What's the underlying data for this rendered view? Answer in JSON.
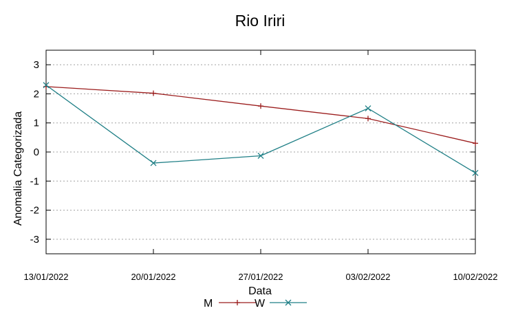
{
  "chart_data": {
    "type": "line",
    "title": "Rio Iriri",
    "xlabel": "Data",
    "ylabel": "Anomalia Categorizada",
    "ylim": [
      -3.5,
      3.5
    ],
    "yticks": [
      "3",
      "2",
      "1",
      "0",
      "-1",
      "-2",
      "-3"
    ],
    "ytick_values": [
      3,
      2,
      1,
      0,
      -1,
      -2,
      -3
    ],
    "categories": [
      "13/01/2022",
      "20/01/2022",
      "27/01/2022",
      "03/02/2022",
      "10/02/2022"
    ],
    "grid": true,
    "legend_position": "bottom",
    "series": [
      {
        "name": "M",
        "color": "#9b1c1c",
        "marker": "plus",
        "values": [
          2.25,
          2.02,
          1.58,
          1.15,
          0.3
        ]
      },
      {
        "name": "W",
        "color": "#1f7f86",
        "marker": "cross",
        "values": [
          2.3,
          -0.38,
          -0.13,
          1.5,
          -0.72
        ]
      }
    ]
  }
}
